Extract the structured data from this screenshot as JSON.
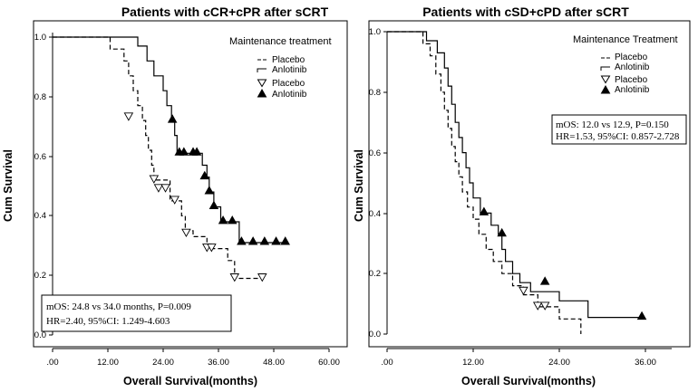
{
  "chart_data": [
    {
      "type": "line",
      "title": "Patients with cCR+cPR after sCRT",
      "xlabel": "Overall Survival(months)",
      "ylabel": "Cum Survival",
      "xlim": [
        0,
        60
      ],
      "ylim": [
        0,
        1
      ],
      "xtick_labels": [
        ".00",
        "12.00",
        "24.00",
        "36.00",
        "48.00",
        "60.00"
      ],
      "ytick_labels": [
        "0.0",
        "0.2",
        "0.4",
        "0.6",
        "0.8",
        "1.0"
      ],
      "legend_title": "Maintenance treatment",
      "legend_labels": [
        "Placebo",
        "Anlotinib",
        "Placebo",
        "Anlotinib"
      ],
      "stats": [
        "mOS:  24.8 vs 34.0 months, P=0.009",
        "HR=2.40, 95%CI: 1.249-4.603"
      ],
      "series": [
        {
          "name": "Placebo",
          "style": "dashed",
          "steps": [
            [
              0,
              1.0
            ],
            [
              12.5,
              0.96
            ],
            [
              15.5,
              0.92
            ],
            [
              16.5,
              0.87
            ],
            [
              17.5,
              0.82
            ],
            [
              18.5,
              0.77
            ],
            [
              19.5,
              0.72
            ],
            [
              20.2,
              0.67
            ],
            [
              20.8,
              0.62
            ],
            [
              21.5,
              0.57
            ],
            [
              22.0,
              0.52
            ],
            [
              25.5,
              0.45
            ],
            [
              28.0,
              0.4
            ],
            [
              28.8,
              0.35
            ],
            [
              30.5,
              0.33
            ],
            [
              33.5,
              0.29
            ],
            [
              38.0,
              0.25
            ],
            [
              39.5,
              0.19
            ],
            [
              45.5,
              0.19
            ]
          ],
          "censored": [
            [
              16.5,
              0.73
            ],
            [
              22.0,
              0.52
            ],
            [
              23.0,
              0.49
            ],
            [
              24.5,
              0.49
            ],
            [
              26.5,
              0.45
            ],
            [
              29.0,
              0.34
            ],
            [
              33.5,
              0.29
            ],
            [
              34.5,
              0.29
            ],
            [
              39.5,
              0.19
            ],
            [
              45.5,
              0.19
            ]
          ]
        },
        {
          "name": "Anlotinib",
          "style": "solid",
          "steps": [
            [
              0,
              1.0
            ],
            [
              18.5,
              0.97
            ],
            [
              20.5,
              0.92
            ],
            [
              22.0,
              0.87
            ],
            [
              24.0,
              0.82
            ],
            [
              24.8,
              0.77
            ],
            [
              25.8,
              0.72
            ],
            [
              26.5,
              0.67
            ],
            [
              27.0,
              0.61
            ],
            [
              32.5,
              0.57
            ],
            [
              33.5,
              0.53
            ],
            [
              34.0,
              0.48
            ],
            [
              35.0,
              0.43
            ],
            [
              36.5,
              0.38
            ],
            [
              40.5,
              0.31
            ],
            [
              50.5,
              0.31
            ]
          ],
          "censored": [
            [
              26.0,
              0.72
            ],
            [
              27.5,
              0.61
            ],
            [
              28.5,
              0.61
            ],
            [
              30.5,
              0.61
            ],
            [
              31.3,
              0.61
            ],
            [
              33.0,
              0.53
            ],
            [
              34.0,
              0.48
            ],
            [
              35.0,
              0.43
            ],
            [
              37.0,
              0.38
            ],
            [
              39.0,
              0.38
            ],
            [
              41.0,
              0.31
            ],
            [
              43.5,
              0.31
            ],
            [
              46.0,
              0.31
            ],
            [
              48.5,
              0.31
            ],
            [
              50.5,
              0.31
            ]
          ]
        }
      ]
    },
    {
      "type": "line",
      "title": "Patients with cSD+cPD after sCRT",
      "xlabel": "Overall Survival(months)",
      "ylabel": "Cum Survival",
      "xlim": [
        0,
        40
      ],
      "ylim": [
        0,
        1
      ],
      "xtick_labels": [
        ".00",
        "12.00",
        "24.00",
        "36.00"
      ],
      "ytick_labels": [
        "0.0",
        "0.2",
        "0.4",
        "0.6",
        "0.8",
        "1.0"
      ],
      "legend_title": "Maintenance Treatment",
      "legend_labels": [
        "Placebo",
        "Anlotinib",
        "Placebo",
        "Anlotinib"
      ],
      "stats": [
        "mOS: 12.0 vs 12.9, P=0.150",
        "HR=1.53, 95%CI: 0.857-2.728"
      ],
      "series": [
        {
          "name": "Placebo",
          "style": "dashed",
          "steps": [
            [
              0,
              1.0
            ],
            [
              5.0,
              0.96
            ],
            [
              6.0,
              0.92
            ],
            [
              6.8,
              0.86
            ],
            [
              7.5,
              0.8
            ],
            [
              8.0,
              0.74
            ],
            [
              8.5,
              0.68
            ],
            [
              9.0,
              0.62
            ],
            [
              9.5,
              0.57
            ],
            [
              10.0,
              0.52
            ],
            [
              10.5,
              0.47
            ],
            [
              11.2,
              0.42
            ],
            [
              12.0,
              0.38
            ],
            [
              12.8,
              0.33
            ],
            [
              13.8,
              0.28
            ],
            [
              14.8,
              0.24
            ],
            [
              16.0,
              0.2
            ],
            [
              17.5,
              0.16
            ],
            [
              19.0,
              0.13
            ],
            [
              21.0,
              0.09
            ],
            [
              24.0,
              0.05
            ],
            [
              27.0,
              0.0
            ]
          ],
          "censored": [
            [
              19.0,
              0.14
            ],
            [
              21.0,
              0.09
            ],
            [
              22.0,
              0.09
            ]
          ]
        },
        {
          "name": "Anlotinib",
          "style": "solid",
          "steps": [
            [
              0,
              1.0
            ],
            [
              5.5,
              0.97
            ],
            [
              7.0,
              0.93
            ],
            [
              8.0,
              0.88
            ],
            [
              8.5,
              0.82
            ],
            [
              9.0,
              0.76
            ],
            [
              9.5,
              0.7
            ],
            [
              10.0,
              0.65
            ],
            [
              10.5,
              0.6
            ],
            [
              11.0,
              0.55
            ],
            [
              11.5,
              0.5
            ],
            [
              12.0,
              0.45
            ],
            [
              13.0,
              0.4
            ],
            [
              14.5,
              0.36
            ],
            [
              15.5,
              0.33
            ],
            [
              16.0,
              0.28
            ],
            [
              16.5,
              0.24
            ],
            [
              17.5,
              0.2
            ],
            [
              18.5,
              0.17
            ],
            [
              20.0,
              0.14
            ],
            [
              24.0,
              0.11
            ],
            [
              28.0,
              0.055
            ],
            [
              35.5,
              0.055
            ]
          ],
          "censored": [
            [
              13.5,
              0.4
            ],
            [
              16.0,
              0.33
            ],
            [
              22.0,
              0.17
            ],
            [
              35.5,
              0.055
            ]
          ]
        }
      ]
    }
  ]
}
